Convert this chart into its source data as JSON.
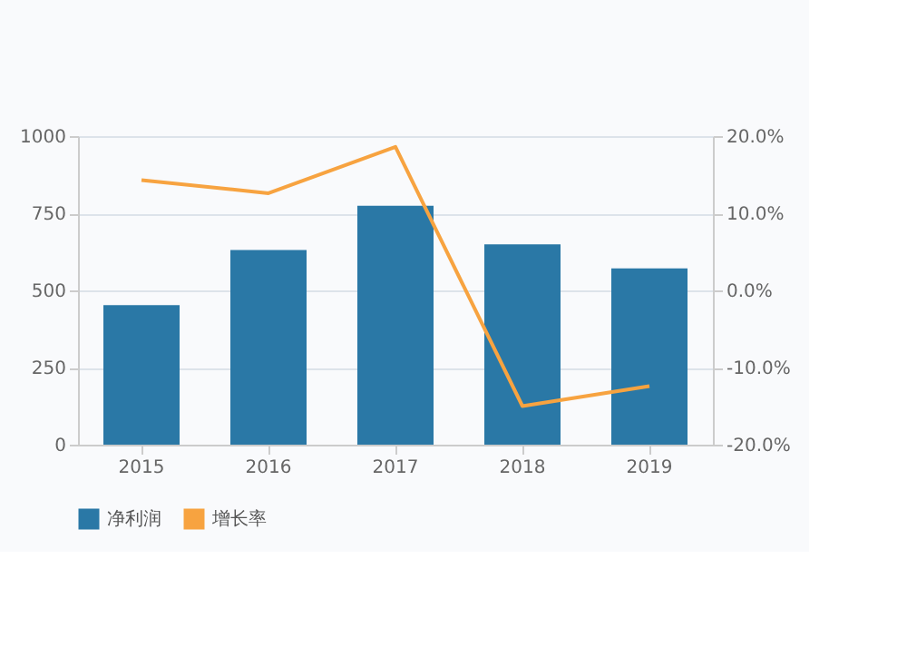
{
  "chart_data": {
    "type": "bar",
    "categories": [
      "2015",
      "2016",
      "2017",
      "2018",
      "2019"
    ],
    "series": [
      {
        "name": "净利润",
        "color": "#2a78a6",
        "values": [
          452,
          631,
          774,
          649,
          571
        ]
      },
      {
        "name": "增长率",
        "type": "line",
        "axis": "y2",
        "color": "#f7a340",
        "values": [
          14.3,
          12.6,
          18.6,
          -15.0,
          -12.4
        ]
      }
    ],
    "ylim": [
      0,
      1000
    ],
    "yticks": [
      0,
      250,
      500,
      750,
      1000
    ],
    "y2lim": [
      -20,
      20
    ],
    "y2ticks": [
      {
        "value": -20,
        "label": "-20.0%"
      },
      {
        "value": -10,
        "label": "-10.0%"
      },
      {
        "value": 0,
        "label": "0.0%"
      },
      {
        "value": 10,
        "label": "10.0%"
      },
      {
        "value": 20,
        "label": "20.0%"
      }
    ],
    "grid": "y",
    "legend": "bottom"
  }
}
